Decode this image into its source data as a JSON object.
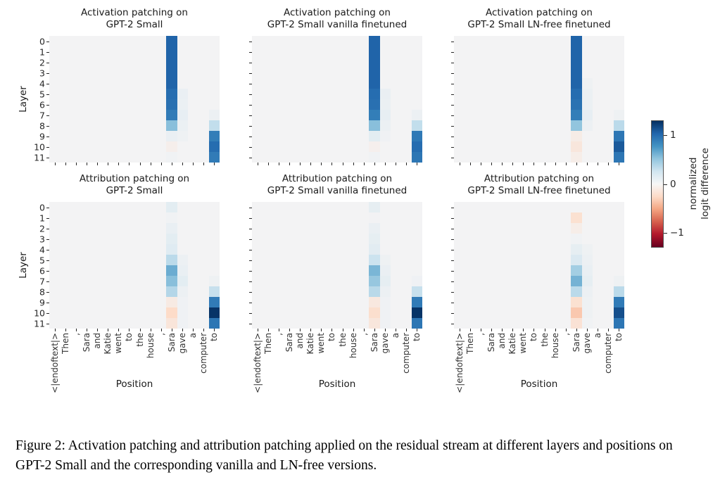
{
  "caption": {
    "text": "Figure 2: Activation patching and attribution patching applied on the residual stream at different layers and positions on GPT-2 Small and the corresponding vanilla and LN-free versions."
  },
  "chart_data": {
    "type": "heatmap",
    "colormap": "RdBu",
    "vmin": -1.3,
    "vmax": 1.3,
    "default_value": 0,
    "grid": false,
    "xlabel": "Position",
    "ylabel": "Layer",
    "x_categories": [
      "<|endoftext|>",
      "Then",
      ",",
      "Sara",
      "and",
      "Katie",
      "went",
      "to",
      "the",
      "house",
      ",",
      "Sara",
      "gave",
      "a",
      "computer",
      "to"
    ],
    "y_categories": [
      "0",
      "1",
      "2",
      "3",
      "4",
      "5",
      "6",
      "7",
      "8",
      "9",
      "10",
      "11"
    ],
    "colorbar": {
      "label_line1": "normalized",
      "label_line2": "logit difference",
      "ticks": [
        {
          "value": 1,
          "label": "1"
        },
        {
          "value": 0,
          "label": "0"
        },
        {
          "value": -1,
          "label": "−1"
        }
      ]
    },
    "panels": [
      {
        "title_line1": "Activation patching on",
        "title_line2": "GPT-2 Small",
        "cells": [
          [
            0,
            11,
            1.05
          ],
          [
            1,
            11,
            1.05
          ],
          [
            2,
            11,
            1.05
          ],
          [
            3,
            11,
            1.05
          ],
          [
            4,
            11,
            1.05
          ],
          [
            5,
            11,
            1.0
          ],
          [
            6,
            11,
            0.98
          ],
          [
            7,
            11,
            0.92
          ],
          [
            8,
            11,
            0.55
          ],
          [
            9,
            11,
            0.07
          ],
          [
            10,
            11,
            -0.05
          ],
          [
            11,
            11,
            0.02
          ],
          [
            5,
            12,
            0.07
          ],
          [
            6,
            12,
            0.06
          ],
          [
            7,
            12,
            0.09
          ],
          [
            8,
            12,
            0.06
          ],
          [
            9,
            12,
            0.04
          ],
          [
            7,
            15,
            0.05
          ],
          [
            8,
            15,
            0.32
          ],
          [
            9,
            15,
            0.9
          ],
          [
            10,
            15,
            1.0
          ],
          [
            11,
            15,
            0.92
          ]
        ]
      },
      {
        "title_line1": "Activation patching on",
        "title_line2": "GPT-2 Small vanilla finetuned",
        "cells": [
          [
            0,
            11,
            1.05
          ],
          [
            1,
            11,
            1.05
          ],
          [
            2,
            11,
            1.05
          ],
          [
            3,
            11,
            1.05
          ],
          [
            4,
            11,
            1.05
          ],
          [
            5,
            11,
            1.0
          ],
          [
            6,
            11,
            0.98
          ],
          [
            7,
            11,
            0.9
          ],
          [
            8,
            11,
            0.55
          ],
          [
            9,
            11,
            0.12
          ],
          [
            10,
            11,
            -0.04
          ],
          [
            11,
            11,
            0.02
          ],
          [
            5,
            12,
            0.07
          ],
          [
            6,
            12,
            0.06
          ],
          [
            7,
            12,
            0.09
          ],
          [
            8,
            12,
            0.06
          ],
          [
            9,
            12,
            0.03
          ],
          [
            7,
            15,
            0.05
          ],
          [
            8,
            15,
            0.32
          ],
          [
            9,
            15,
            0.93
          ],
          [
            10,
            15,
            1.0
          ],
          [
            11,
            15,
            0.95
          ]
        ]
      },
      {
        "title_line1": "Activation patching on",
        "title_line2": "GPT-2 Small LN-free finetuned",
        "cells": [
          [
            0,
            11,
            1.05
          ],
          [
            1,
            11,
            1.05
          ],
          [
            2,
            11,
            1.05
          ],
          [
            3,
            11,
            1.05
          ],
          [
            4,
            11,
            1.05
          ],
          [
            5,
            11,
            1.0
          ],
          [
            6,
            11,
            0.97
          ],
          [
            7,
            11,
            0.9
          ],
          [
            8,
            11,
            0.52
          ],
          [
            9,
            11,
            -0.08
          ],
          [
            10,
            11,
            -0.14
          ],
          [
            11,
            11,
            -0.07
          ],
          [
            4,
            12,
            0.04
          ],
          [
            5,
            12,
            0.06
          ],
          [
            6,
            12,
            0.06
          ],
          [
            7,
            12,
            0.09
          ],
          [
            8,
            12,
            0.05
          ],
          [
            7,
            15,
            0.04
          ],
          [
            8,
            15,
            0.35
          ],
          [
            9,
            15,
            0.95
          ],
          [
            10,
            15,
            1.1
          ],
          [
            11,
            15,
            0.95
          ]
        ]
      },
      {
        "title_line1": "Attribution patching on",
        "title_line2": "GPT-2 Small",
        "cells": [
          [
            0,
            11,
            0.12
          ],
          [
            1,
            11,
            0.02
          ],
          [
            2,
            11,
            0.08
          ],
          [
            3,
            11,
            0.12
          ],
          [
            4,
            11,
            0.15
          ],
          [
            5,
            11,
            0.35
          ],
          [
            6,
            11,
            0.65
          ],
          [
            7,
            11,
            0.55
          ],
          [
            8,
            11,
            0.38
          ],
          [
            9,
            11,
            -0.1
          ],
          [
            10,
            11,
            -0.25
          ],
          [
            11,
            11,
            -0.15
          ],
          [
            5,
            12,
            0.05
          ],
          [
            6,
            12,
            0.08
          ],
          [
            7,
            12,
            0.12
          ],
          [
            8,
            12,
            0.05
          ],
          [
            9,
            12,
            0.03
          ],
          [
            10,
            12,
            0.03
          ],
          [
            11,
            12,
            0.03
          ],
          [
            7,
            15,
            0.04
          ],
          [
            8,
            15,
            0.3
          ],
          [
            9,
            15,
            0.92
          ],
          [
            10,
            15,
            1.28
          ],
          [
            11,
            15,
            0.95
          ]
        ]
      },
      {
        "title_line1": "Attribution patching on",
        "title_line2": "GPT-2 Small vanilla finetuned",
        "cells": [
          [
            0,
            11,
            0.1
          ],
          [
            1,
            11,
            0.01
          ],
          [
            2,
            11,
            0.07
          ],
          [
            3,
            11,
            0.1
          ],
          [
            4,
            11,
            0.13
          ],
          [
            5,
            11,
            0.28
          ],
          [
            6,
            11,
            0.6
          ],
          [
            7,
            11,
            0.5
          ],
          [
            8,
            11,
            0.36
          ],
          [
            9,
            11,
            -0.12
          ],
          [
            10,
            11,
            -0.22
          ],
          [
            11,
            11,
            -0.14
          ],
          [
            5,
            12,
            0.04
          ],
          [
            6,
            12,
            0.07
          ],
          [
            7,
            12,
            0.1
          ],
          [
            8,
            12,
            0.05
          ],
          [
            9,
            12,
            0.03
          ],
          [
            10,
            12,
            0.03
          ],
          [
            11,
            12,
            0.03
          ],
          [
            7,
            15,
            0.03
          ],
          [
            8,
            15,
            0.3
          ],
          [
            9,
            15,
            0.92
          ],
          [
            10,
            15,
            1.28
          ],
          [
            11,
            15,
            0.95
          ]
        ]
      },
      {
        "title_line1": "Attribution patching on",
        "title_line2": "GPT-2 Small LN-free finetuned",
        "cells": [
          [
            1,
            11,
            -0.2
          ],
          [
            2,
            11,
            -0.07
          ],
          [
            3,
            11,
            0.02
          ],
          [
            4,
            11,
            0.1
          ],
          [
            5,
            11,
            0.18
          ],
          [
            6,
            11,
            0.45
          ],
          [
            7,
            11,
            0.62
          ],
          [
            8,
            11,
            0.35
          ],
          [
            9,
            11,
            -0.2
          ],
          [
            10,
            11,
            -0.35
          ],
          [
            11,
            11,
            -0.18
          ],
          [
            4,
            12,
            0.04
          ],
          [
            5,
            12,
            0.05
          ],
          [
            6,
            12,
            0.08
          ],
          [
            7,
            12,
            0.1
          ],
          [
            8,
            12,
            0.05
          ],
          [
            9,
            12,
            0.04
          ],
          [
            10,
            12,
            0.04
          ],
          [
            11,
            12,
            0.02
          ],
          [
            7,
            15,
            0.04
          ],
          [
            8,
            15,
            0.35
          ],
          [
            9,
            15,
            0.92
          ],
          [
            10,
            15,
            1.15
          ],
          [
            11,
            15,
            0.95
          ]
        ]
      }
    ]
  }
}
